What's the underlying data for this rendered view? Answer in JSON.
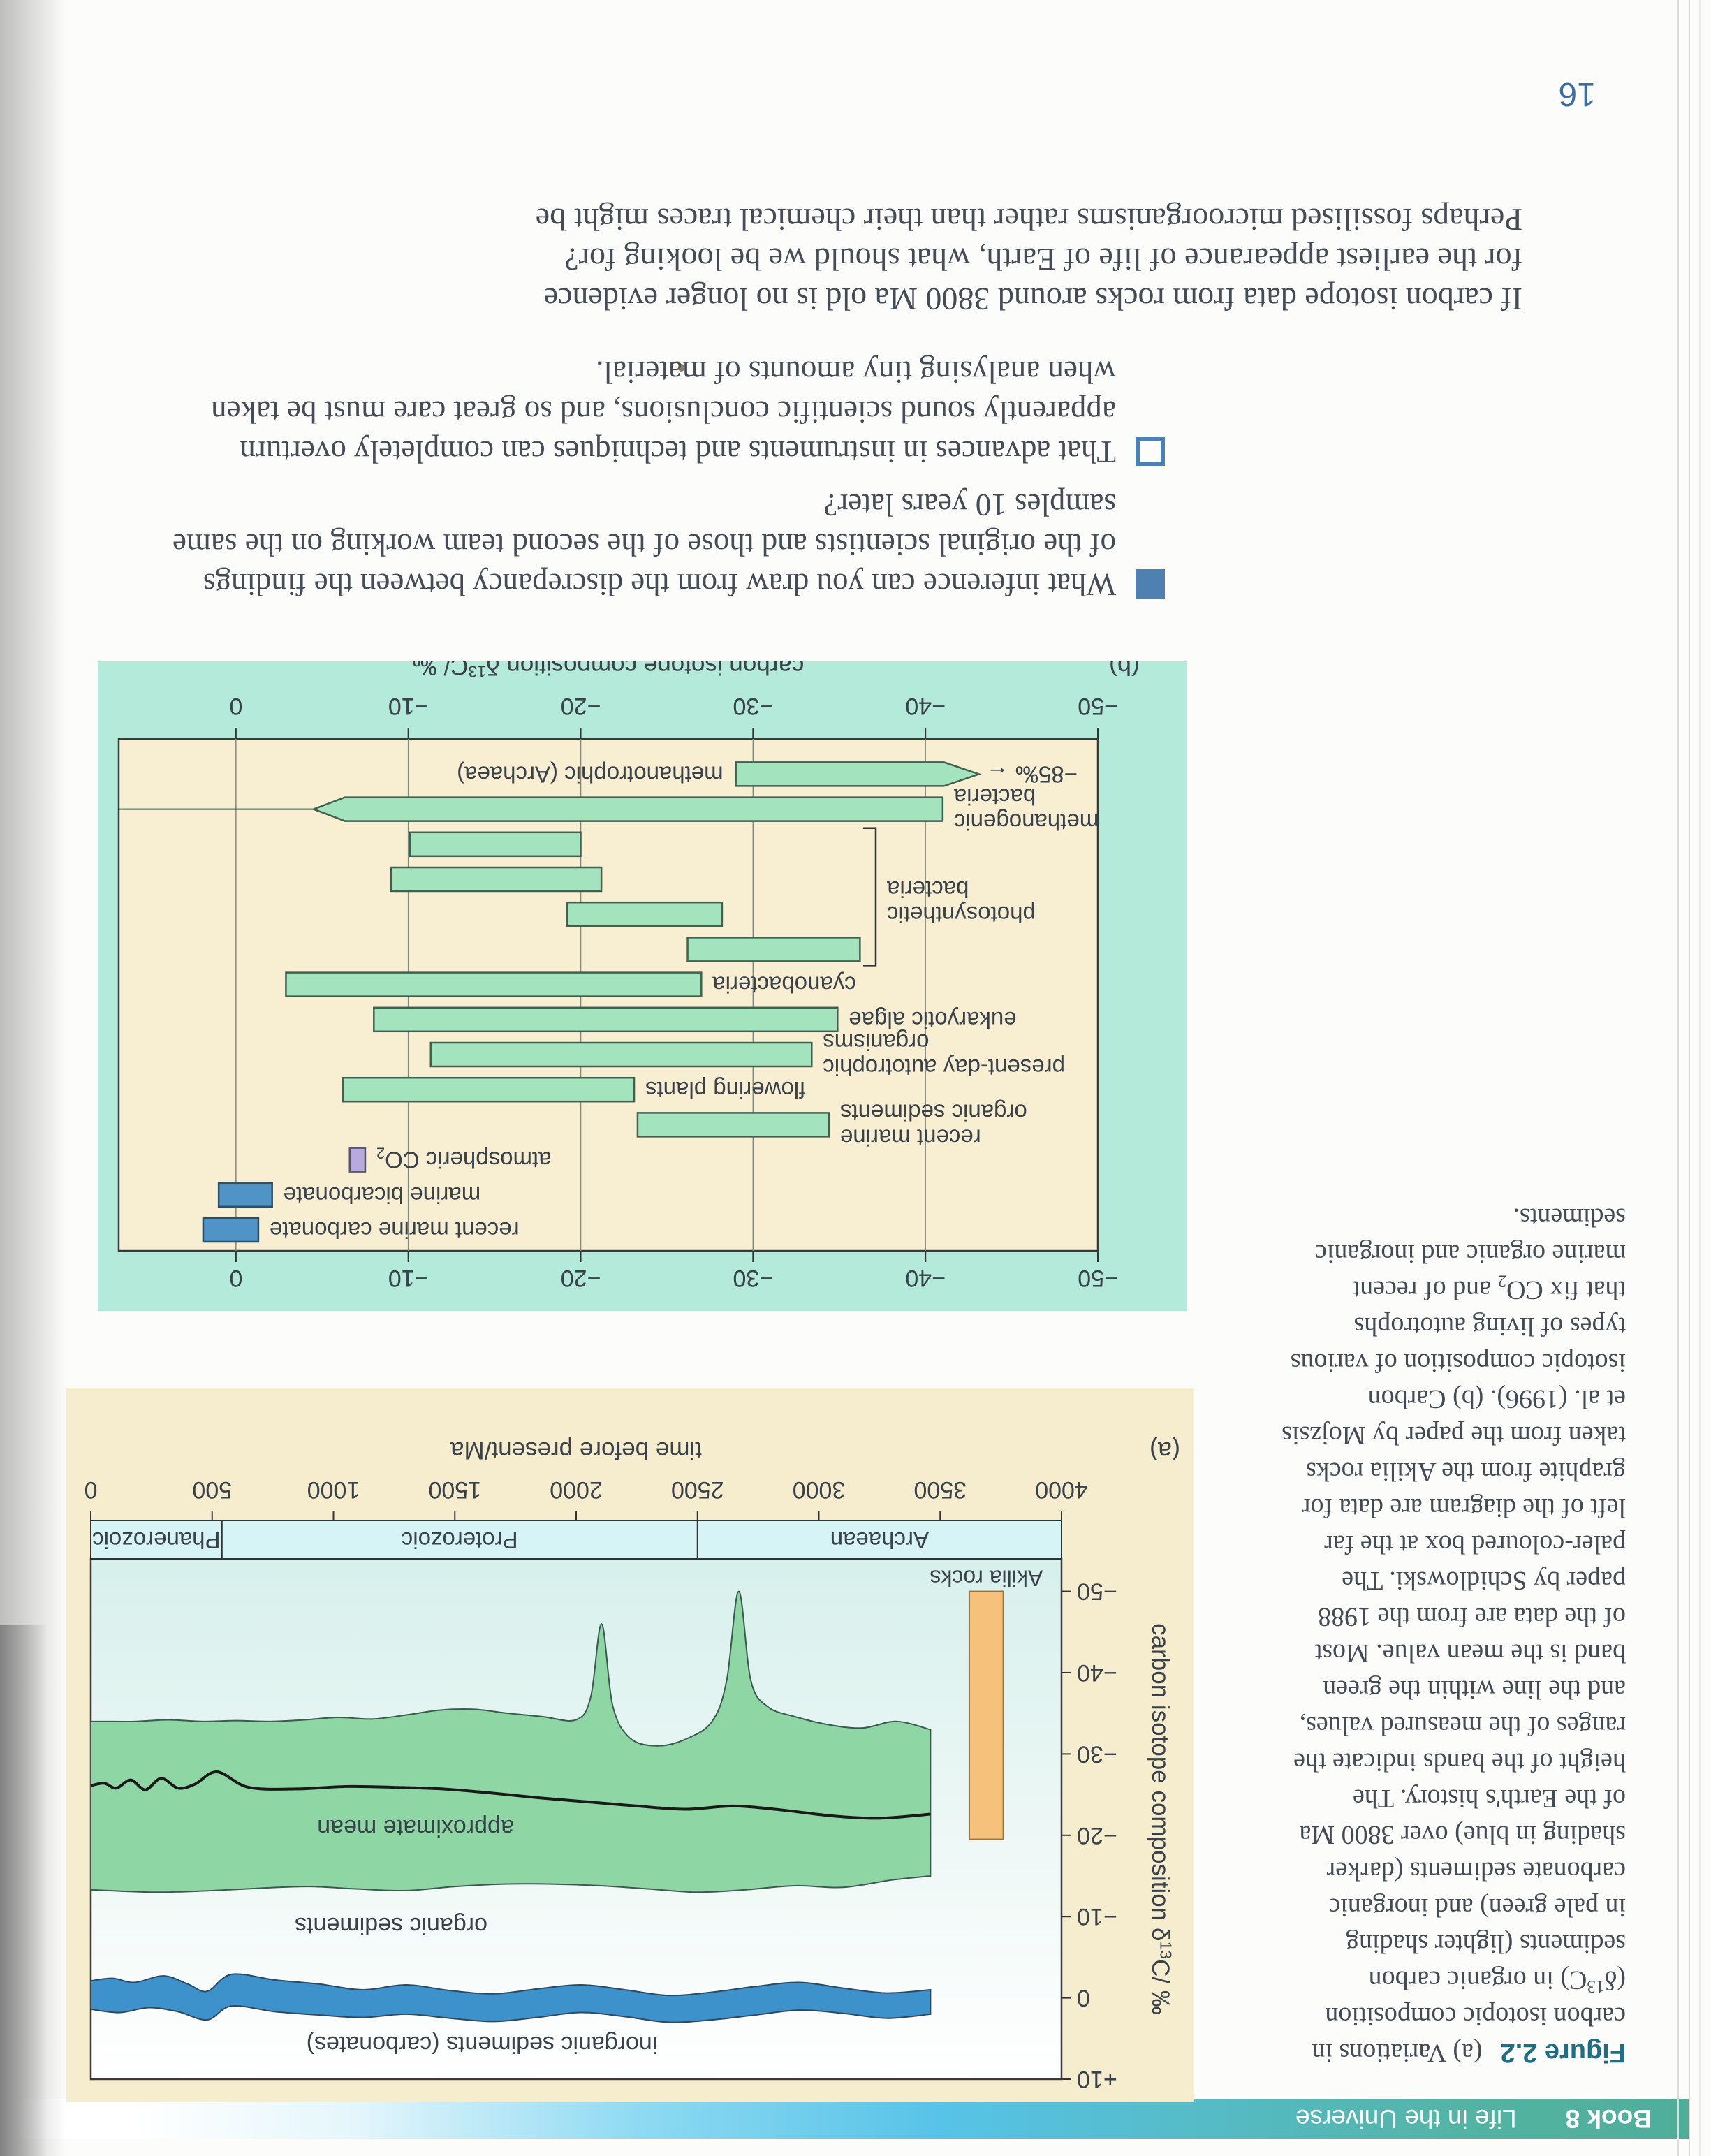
{
  "page": {
    "number": "16",
    "banner": {
      "book": "Book 8",
      "title": "Life in the Universe"
    },
    "body": {
      "bullets": [
        {
          "marker": "filled-square",
          "lines": [
            "What inference can you draw from the discrepancy between the findings",
            "of the original scientists and those of the second team working on the same",
            "samples 10 years later?"
          ]
        },
        {
          "marker": "open-square",
          "lines": [
            "That advances in instruments and techniques can completely overturn",
            "apparently sound scientific conclusions, and so great care must be taken",
            "when analysing tiny amounts of material."
          ]
        }
      ],
      "paragraph_lines": [
        "If carbon isotope data from rocks around 3800 Ma old is no longer evidence",
        "for the earliest appearance of life of Earth, what should we be looking for?",
        "Perhaps fossilised microorganisms rather than their chemical traces might be"
      ]
    },
    "caption": {
      "label": "Figure 2.2",
      "first_line_rest": "(a) Variations in",
      "lines": [
        "carbon isotopic composition",
        "(δ^{13}C) in organic carbon",
        "sediments (lighter shading",
        "in pale green) and inorganic",
        "carbonate sediments (darker",
        "shading in blue) over 3800 Ma",
        "of the Earth's history. The",
        "height of the bands indicate the",
        "ranges of the measured values,",
        "and the line within the green",
        "band is the mean value. Most",
        "of the data are from the 1988",
        "paper by Schidlowski. The",
        "paler-coloured box at the far",
        "left of the diagram are data for",
        "graphite from the Akilia rocks",
        "taken from the paper by Mojzsis",
        "et al. (1996). (b) Carbon",
        "isotopic composition of various",
        "types of living autotrophs",
        "that fix CO_{2} and of recent",
        "marine organic and inorganic",
        "sediments."
      ]
    }
  },
  "colors": {
    "mint_panel": "#b4ead9",
    "cream": "#f8efd3",
    "panel_a_bg": "#f5edcd",
    "green_bar": "#a3e3bd",
    "green_stroke": "#41604f",
    "blue_bar": "#4f93c7",
    "blue_stroke": "#2f4f63",
    "lilac_bar": "#b7abdc",
    "lilac_stroke": "#555377",
    "band_green": "#8fd6a5",
    "band_green_stroke": "#3c5a50",
    "band_blue": "#3e92cb",
    "band_blue_stroke": "#2c4a62",
    "akilia_orange": "#f6c27b",
    "akilia_stroke": "#9a7340",
    "era_fill": "#d6f3f6",
    "axis_text": "#39424a",
    "grid": "#7d8a80",
    "plot_border": "#3a3a3a",
    "banner_teal": "#4fae9a",
    "banner_blue": "#57c3e8",
    "bullet_blue": "#4e81b1",
    "figure_label": "#1e6e84",
    "page_number_blue": "#3c6ea5"
  },
  "chart_data": [
    {
      "type": "area",
      "panel": "(a)",
      "xlabel": "time before present/Ma",
      "ylabel": "carbon isotope composition δ^{13}C/ ‰",
      "x_ticks": [
        4000,
        3500,
        3000,
        2500,
        2000,
        1500,
        1000,
        500,
        0
      ],
      "y_ticks": [
        {
          "v": 10,
          "label": "+10"
        },
        {
          "v": 0,
          "label": "0"
        },
        {
          "v": -10,
          "label": "−10"
        },
        {
          "v": -20,
          "label": "−20"
        },
        {
          "v": -30,
          "label": "−30"
        },
        {
          "v": -40,
          "label": "−40"
        },
        {
          "v": -50,
          "label": "−50"
        }
      ],
      "xlim": [
        4000,
        0
      ],
      "ylim_top_bottom": [
        10,
        -54
      ],
      "grid": false,
      "eras": [
        {
          "label": "Archaean",
          "from": 4000,
          "to": 2500
        },
        {
          "label": "Proterozoic",
          "from": 2500,
          "to": 540
        },
        {
          "label": "Phanerozoic",
          "from": 540,
          "to": 0
        }
      ],
      "akilia": {
        "label": "Akilia rocks",
        "t": [
          3760,
          3620
        ],
        "d": [
          -19.5,
          -50
        ]
      },
      "organic_band": {
        "label": "organic sediments",
        "top": [
          [
            3460,
            -15
          ],
          [
            3300,
            -14.5
          ],
          [
            3100,
            -13.6
          ],
          [
            2900,
            -13.8
          ],
          [
            2700,
            -13.3
          ],
          [
            2500,
            -13
          ],
          [
            2300,
            -13.4
          ],
          [
            2100,
            -13.8
          ],
          [
            1900,
            -14
          ],
          [
            1700,
            -14
          ],
          [
            1500,
            -13.7
          ],
          [
            1300,
            -13.2
          ],
          [
            1100,
            -13.4
          ],
          [
            900,
            -13.7
          ],
          [
            700,
            -13.5
          ],
          [
            500,
            -13.2
          ],
          [
            300,
            -13
          ],
          [
            150,
            -13.1
          ],
          [
            0,
            -13.3
          ]
        ],
        "bottom": [
          [
            3460,
            -33
          ],
          [
            3320,
            -34
          ],
          [
            3180,
            -33.2
          ],
          [
            3040,
            -33.6
          ],
          [
            2900,
            -34.6
          ],
          [
            2790,
            -35.8
          ],
          [
            2720,
            -39
          ],
          [
            2670,
            -50
          ],
          [
            2620,
            -39
          ],
          [
            2560,
            -34
          ],
          [
            2450,
            -31.8
          ],
          [
            2330,
            -31
          ],
          [
            2220,
            -32
          ],
          [
            2150,
            -36
          ],
          [
            2105,
            -46
          ],
          [
            2060,
            -37
          ],
          [
            2000,
            -34.2
          ],
          [
            1860,
            -34.6
          ],
          [
            1720,
            -35
          ],
          [
            1580,
            -35.5
          ],
          [
            1440,
            -35.4
          ],
          [
            1300,
            -34.8
          ],
          [
            1160,
            -34.3
          ],
          [
            1020,
            -34.5
          ],
          [
            880,
            -34.2
          ],
          [
            740,
            -34
          ],
          [
            600,
            -34.1
          ],
          [
            460,
            -34
          ],
          [
            320,
            -34.2
          ],
          [
            180,
            -34
          ],
          [
            60,
            -34
          ],
          [
            0,
            -34
          ]
        ]
      },
      "mean_line": {
        "label": "approximate mean",
        "points": [
          [
            3460,
            -22.6
          ],
          [
            3250,
            -22.1
          ],
          [
            3050,
            -22.4
          ],
          [
            2850,
            -23.1
          ],
          [
            2650,
            -23.6
          ],
          [
            2450,
            -23.2
          ],
          [
            2250,
            -23.6
          ],
          [
            2050,
            -24.1
          ],
          [
            1850,
            -24.6
          ],
          [
            1650,
            -25.2
          ],
          [
            1450,
            -25.7
          ],
          [
            1250,
            -25.9
          ],
          [
            1050,
            -26
          ],
          [
            850,
            -25.7
          ],
          [
            650,
            -25.9
          ],
          [
            520,
            -27.8
          ],
          [
            430,
            -26.3
          ],
          [
            360,
            -25.8
          ],
          [
            290,
            -27
          ],
          [
            225,
            -25.6
          ],
          [
            165,
            -26.8
          ],
          [
            105,
            -25.8
          ],
          [
            55,
            -26.4
          ],
          [
            0,
            -26.1
          ]
        ]
      },
      "carbonate_band": {
        "label": "inorganic sediments (carbonates)",
        "top": [
          [
            3460,
            2
          ],
          [
            3280,
            2.5
          ],
          [
            3100,
            1.9
          ],
          [
            2920,
            1.5
          ],
          [
            2740,
            2.1
          ],
          [
            2560,
            2.7
          ],
          [
            2380,
            3
          ],
          [
            2200,
            2.3
          ],
          [
            2020,
            1.8
          ],
          [
            1840,
            2.4
          ],
          [
            1660,
            2.9
          ],
          [
            1480,
            2.5
          ],
          [
            1300,
            2
          ],
          [
            1120,
            2.4
          ],
          [
            940,
            2.1
          ],
          [
            760,
            1.7
          ],
          [
            580,
            1
          ],
          [
            480,
            2.7
          ],
          [
            360,
            1.7
          ],
          [
            240,
            1.2
          ],
          [
            120,
            1.8
          ],
          [
            0,
            1.4
          ]
        ],
        "bottom": [
          [
            3460,
            -1
          ],
          [
            3280,
            -0.6
          ],
          [
            3100,
            -1.2
          ],
          [
            2920,
            -1.9
          ],
          [
            2740,
            -1.4
          ],
          [
            2560,
            -0.7
          ],
          [
            2380,
            -0.3
          ],
          [
            2200,
            -1
          ],
          [
            2020,
            -1.6
          ],
          [
            1840,
            -1.1
          ],
          [
            1660,
            -0.5
          ],
          [
            1480,
            -0.9
          ],
          [
            1300,
            -1.6
          ],
          [
            1120,
            -1
          ],
          [
            940,
            -1.7
          ],
          [
            760,
            -2.2
          ],
          [
            580,
            -2.9
          ],
          [
            480,
            -0.8
          ],
          [
            400,
            -1.7
          ],
          [
            300,
            -2.7
          ],
          [
            180,
            -1.9
          ],
          [
            90,
            -2.4
          ],
          [
            0,
            -2.1
          ]
        ]
      }
    },
    {
      "type": "range-bar",
      "panel": "(b)",
      "xlabel": "carbon isotope composition δ^{13}C/ ‰",
      "x_ticks": [
        {
          "v": -50,
          "label": "−50"
        },
        {
          "v": -40,
          "label": "−40"
        },
        {
          "v": -30,
          "label": "−30"
        },
        {
          "v": -20,
          "label": "−20"
        },
        {
          "v": -10,
          "label": "−10"
        },
        {
          "v": 0,
          "label": "0"
        }
      ],
      "xlim": [
        -50,
        6.8
      ],
      "grid": true,
      "rows": [
        {
          "label": [
            "recent marine carbonate"
          ],
          "range": [
            -1.3,
            1.9
          ],
          "color": "blue"
        },
        {
          "label": [
            "marine bicarbonate"
          ],
          "range": [
            -2.1,
            1.0
          ],
          "color": "blue"
        },
        {
          "label": [
            "atmospheric CO_{2}"
          ],
          "range": [
            -7.5,
            -6.6
          ],
          "color": "lilac"
        },
        {
          "label": [
            "recent marine",
            "organic sediments"
          ],
          "range": [
            -34.4,
            -23.3
          ],
          "color": "green"
        },
        {
          "label": [
            "flowering plants"
          ],
          "range": [
            -23.1,
            -6.2
          ],
          "color": "green"
        },
        {
          "label": [
            "present-day autotrophic",
            "organisms"
          ],
          "range": [
            -33.4,
            -11.3
          ],
          "color": "green"
        },
        {
          "label": [
            "eukaryotic algae"
          ],
          "range": [
            -34.9,
            -8.0
          ],
          "color": "green"
        },
        {
          "label": [
            "cyanobacteria"
          ],
          "range": [
            -27.0,
            -2.9
          ],
          "color": "green"
        },
        {
          "label": [],
          "range": [
            -36.2,
            -26.2
          ],
          "color": "green"
        },
        {
          "label": [],
          "range": [
            -28.2,
            -19.2
          ],
          "color": "green"
        },
        {
          "label": [],
          "range": [
            -21.2,
            -9.0
          ],
          "color": "green"
        },
        {
          "label": [],
          "range": [
            -20.0,
            -10.1
          ],
          "color": "green"
        },
        {
          "label": [
            "methanogenic",
            "bacteria"
          ],
          "range": [
            -41.0,
            -4.5
          ],
          "color": "green",
          "arrow": "right",
          "line_to": 6.8
        },
        {
          "label": [
            "methanotrophic (Archaea)"
          ],
          "range": [
            -43.1,
            -29.0
          ],
          "color": "green",
          "arrow": "left",
          "label_side": "right",
          "annotation": "−85‰ ←"
        }
      ],
      "bracket": {
        "label": [
          "photosynthetic",
          "bacteria"
        ],
        "from_row": 8,
        "to_row": 11
      }
    }
  ]
}
